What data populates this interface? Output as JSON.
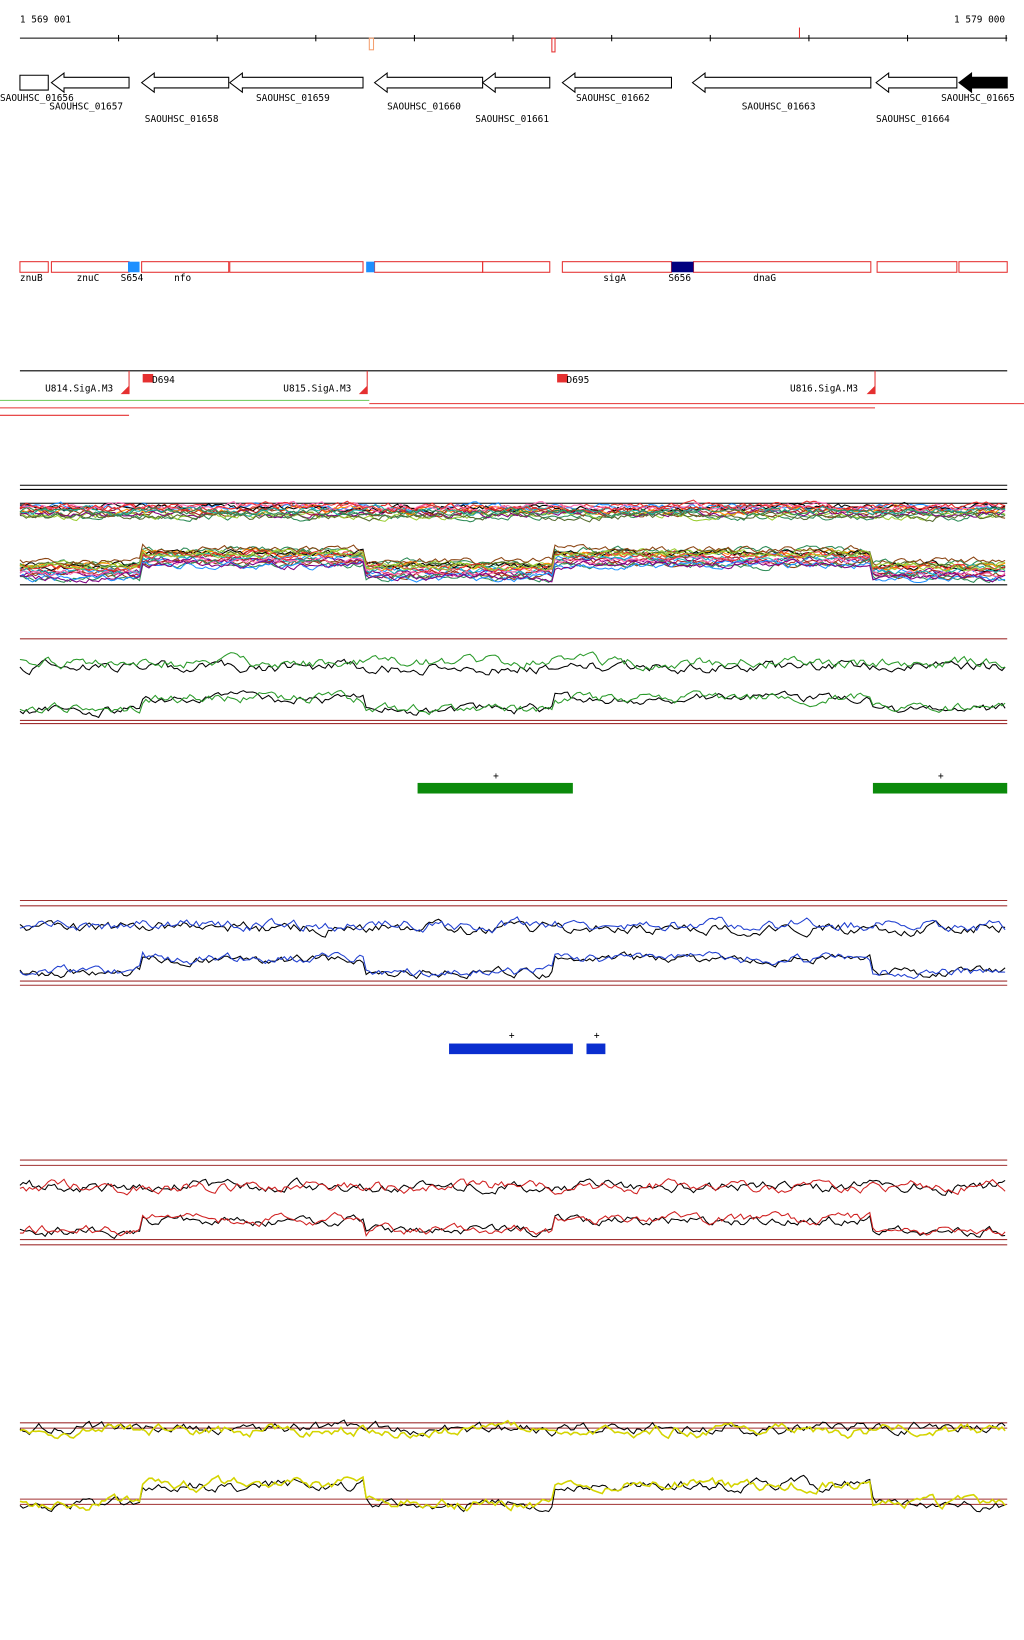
{
  "ruler": {
    "start": "1 569 001",
    "end": "1 579 000"
  },
  "genes": [
    "SAOUHSC_01656",
    "SAOUHSC_01657",
    "SAOUHSC_01658",
    "SAOUHSC_01659",
    "SAOUHSC_01660",
    "SAOUHSC_01661",
    "SAOUHSC_01662",
    "SAOUHSC_01663",
    "SAOUHSC_01664",
    "SAOUHSC_01665"
  ],
  "features": [
    "znuB",
    "znuC",
    "S654",
    "nfo",
    "sigA",
    "S656",
    "dnaG"
  ],
  "promoters": [
    "U814.SigA.M3",
    "D694",
    "U815.SigA.M3",
    "D695",
    "U816.SigA.M3"
  ],
  "green_regions": [
    "+",
    "+"
  ],
  "blue_regions": [
    "+",
    "+"
  ]
}
